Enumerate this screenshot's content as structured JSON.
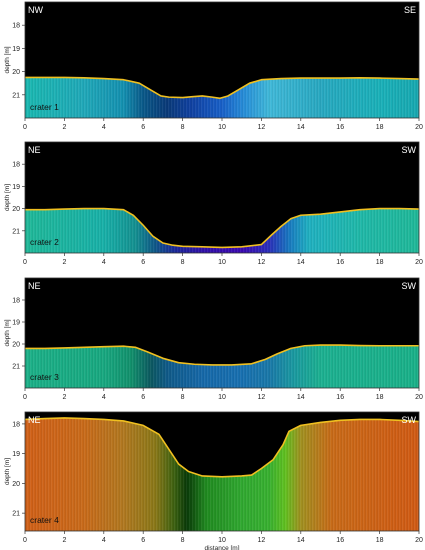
{
  "chart_data": [
    {
      "type": "area",
      "name": "crater 1",
      "left_label": "NW",
      "right_label": "SE",
      "ylabel": "depth [m]",
      "xlim": [
        0,
        20
      ],
      "ylim": [
        22,
        17
      ],
      "x_ticks": [
        0,
        2,
        4,
        6,
        8,
        10,
        12,
        14,
        16,
        18,
        20
      ],
      "y_ticks": [
        18,
        19,
        20,
        21
      ],
      "x": [
        0,
        1,
        2,
        3,
        4,
        5,
        5.8,
        6.4,
        6.9,
        7.3,
        8,
        8.5,
        9,
        9.5,
        9.9,
        10.3,
        10.8,
        11.4,
        12,
        13,
        14,
        15,
        16,
        17,
        18,
        19,
        20
      ],
      "depth": [
        20.25,
        20.25,
        20.25,
        20.27,
        20.3,
        20.35,
        20.5,
        20.8,
        21.05,
        21.1,
        21.12,
        21.08,
        21.05,
        21.1,
        21.15,
        21.05,
        20.8,
        20.5,
        20.35,
        20.3,
        20.28,
        20.28,
        20.28,
        20.27,
        20.28,
        20.3,
        20.32
      ],
      "colors": {
        "surface_line": "#f0c020",
        "sky": "#000000",
        "base": "#1aa8b8"
      }
    },
    {
      "type": "area",
      "name": "crater 2",
      "left_label": "NE",
      "right_label": "SW",
      "ylabel": "depth [m]",
      "xlim": [
        0,
        20
      ],
      "ylim": [
        22,
        17
      ],
      "x_ticks": [
        0,
        2,
        4,
        6,
        8,
        10,
        12,
        14,
        16,
        18,
        20
      ],
      "y_ticks": [
        18,
        19,
        20,
        21
      ],
      "x": [
        0,
        1,
        2,
        3,
        4,
        5,
        5.5,
        6,
        6.5,
        7,
        7.5,
        8,
        9,
        10,
        11,
        12,
        12.5,
        13,
        13.5,
        14,
        15,
        16,
        17,
        18,
        19,
        20
      ],
      "depth": [
        20.05,
        20.05,
        20.02,
        20.0,
        20.0,
        20.05,
        20.3,
        20.75,
        21.25,
        21.55,
        21.65,
        21.7,
        21.72,
        21.75,
        21.72,
        21.62,
        21.2,
        20.8,
        20.45,
        20.3,
        20.25,
        20.15,
        20.05,
        20.0,
        20.0,
        20.02
      ],
      "colors": {
        "surface_line": "#f0c020",
        "sky": "#000000",
        "base": "#22b0a8"
      }
    },
    {
      "type": "area",
      "name": "crater 3",
      "left_label": "NE",
      "right_label": "SW",
      "ylabel": "depth [m]",
      "xlim": [
        0,
        20
      ],
      "ylim": [
        22,
        17
      ],
      "x_ticks": [
        0,
        2,
        4,
        6,
        8,
        10,
        12,
        14,
        16,
        18,
        20
      ],
      "y_ticks": [
        18,
        19,
        20,
        21
      ],
      "x": [
        0,
        1,
        2,
        3,
        4,
        5,
        5.6,
        6.2,
        7,
        7.8,
        8.6,
        9.5,
        10.5,
        11.5,
        12.2,
        12.8,
        13.5,
        14.2,
        15,
        16,
        17,
        18,
        19,
        20
      ],
      "depth": [
        20.2,
        20.2,
        20.18,
        20.15,
        20.12,
        20.1,
        20.15,
        20.35,
        20.65,
        20.85,
        20.92,
        20.95,
        20.95,
        20.9,
        20.7,
        20.45,
        20.2,
        20.08,
        20.05,
        20.05,
        20.07,
        20.08,
        20.08,
        20.08
      ],
      "colors": {
        "surface_line": "#f0c020",
        "sky": "#000000",
        "base": "#1aa890"
      }
    },
    {
      "type": "area",
      "name": "crater 4",
      "left_label": "NE",
      "right_label": "SW",
      "xlabel": "distance [m]",
      "ylabel": "depth [m]",
      "xlim": [
        0,
        20
      ],
      "ylim": [
        21.6,
        17.6
      ],
      "x_ticks": [
        0,
        2,
        4,
        6,
        8,
        10,
        12,
        14,
        16,
        18,
        20
      ],
      "y_ticks": [
        18,
        19,
        20,
        21
      ],
      "x": [
        0,
        1,
        2,
        3,
        4,
        5,
        6,
        6.8,
        7.3,
        7.8,
        8.3,
        9,
        10,
        11,
        11.5,
        12,
        12.6,
        13.1,
        13.4,
        14,
        15,
        16,
        17,
        18,
        19,
        20
      ],
      "depth": [
        17.85,
        17.82,
        17.8,
        17.82,
        17.85,
        17.9,
        18.05,
        18.35,
        18.85,
        19.35,
        19.6,
        19.75,
        19.78,
        19.75,
        19.72,
        19.5,
        19.2,
        18.7,
        18.25,
        18.05,
        17.95,
        17.88,
        17.85,
        17.85,
        17.88,
        17.92
      ],
      "colors": {
        "surface_line": "#f0c020",
        "sky": "#000000",
        "base": "#c8561a"
      }
    }
  ]
}
